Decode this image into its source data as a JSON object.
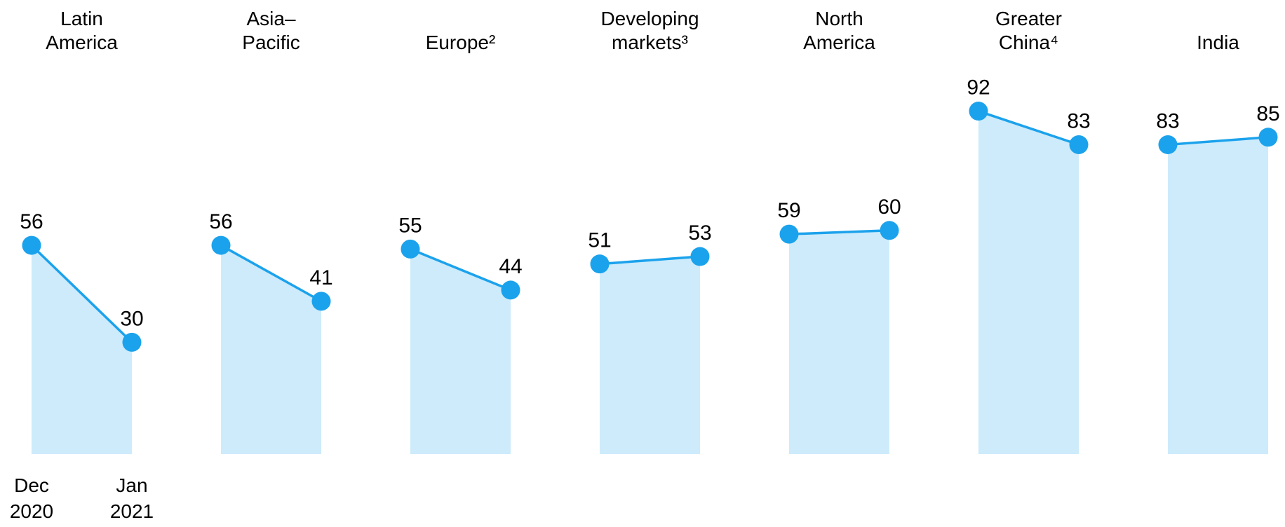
{
  "chart_data": {
    "type": "area",
    "title": "",
    "x": [
      "Dec 2020",
      "Jan 2021"
    ],
    "x_tick_lines": [
      [
        "Dec",
        "2020"
      ],
      [
        "Jan",
        "2021"
      ]
    ],
    "x_ticks_shown_under_first_panel_only": true,
    "ylim": [
      0,
      100
    ],
    "grid": false,
    "legend_position": "none",
    "panels": [
      {
        "region": "Latin America",
        "title_lines": [
          "Latin",
          "America"
        ],
        "values": [
          56,
          30
        ]
      },
      {
        "region": "Asia–Pacific",
        "title_lines": [
          "Asia–",
          "Pacific"
        ],
        "values": [
          56,
          41
        ]
      },
      {
        "region": "Europe",
        "title_lines": [
          "Europe²"
        ],
        "values": [
          55,
          44
        ]
      },
      {
        "region": "Developing markets",
        "title_lines": [
          "Developing",
          "markets³"
        ],
        "values": [
          51,
          53
        ]
      },
      {
        "region": "North America",
        "title_lines": [
          "North",
          "America"
        ],
        "values": [
          59,
          60
        ]
      },
      {
        "region": "Greater China",
        "title_lines": [
          "Greater",
          "China⁴"
        ],
        "values": [
          92,
          83
        ]
      },
      {
        "region": "India",
        "title_lines": [
          "India"
        ],
        "values": [
          83,
          85
        ]
      }
    ],
    "colors": {
      "line": "#1BA2EC",
      "marker": "#1BA2EC",
      "area_fill": "#CDEBFB",
      "text": "#000000",
      "background": "#FFFFFF"
    }
  }
}
